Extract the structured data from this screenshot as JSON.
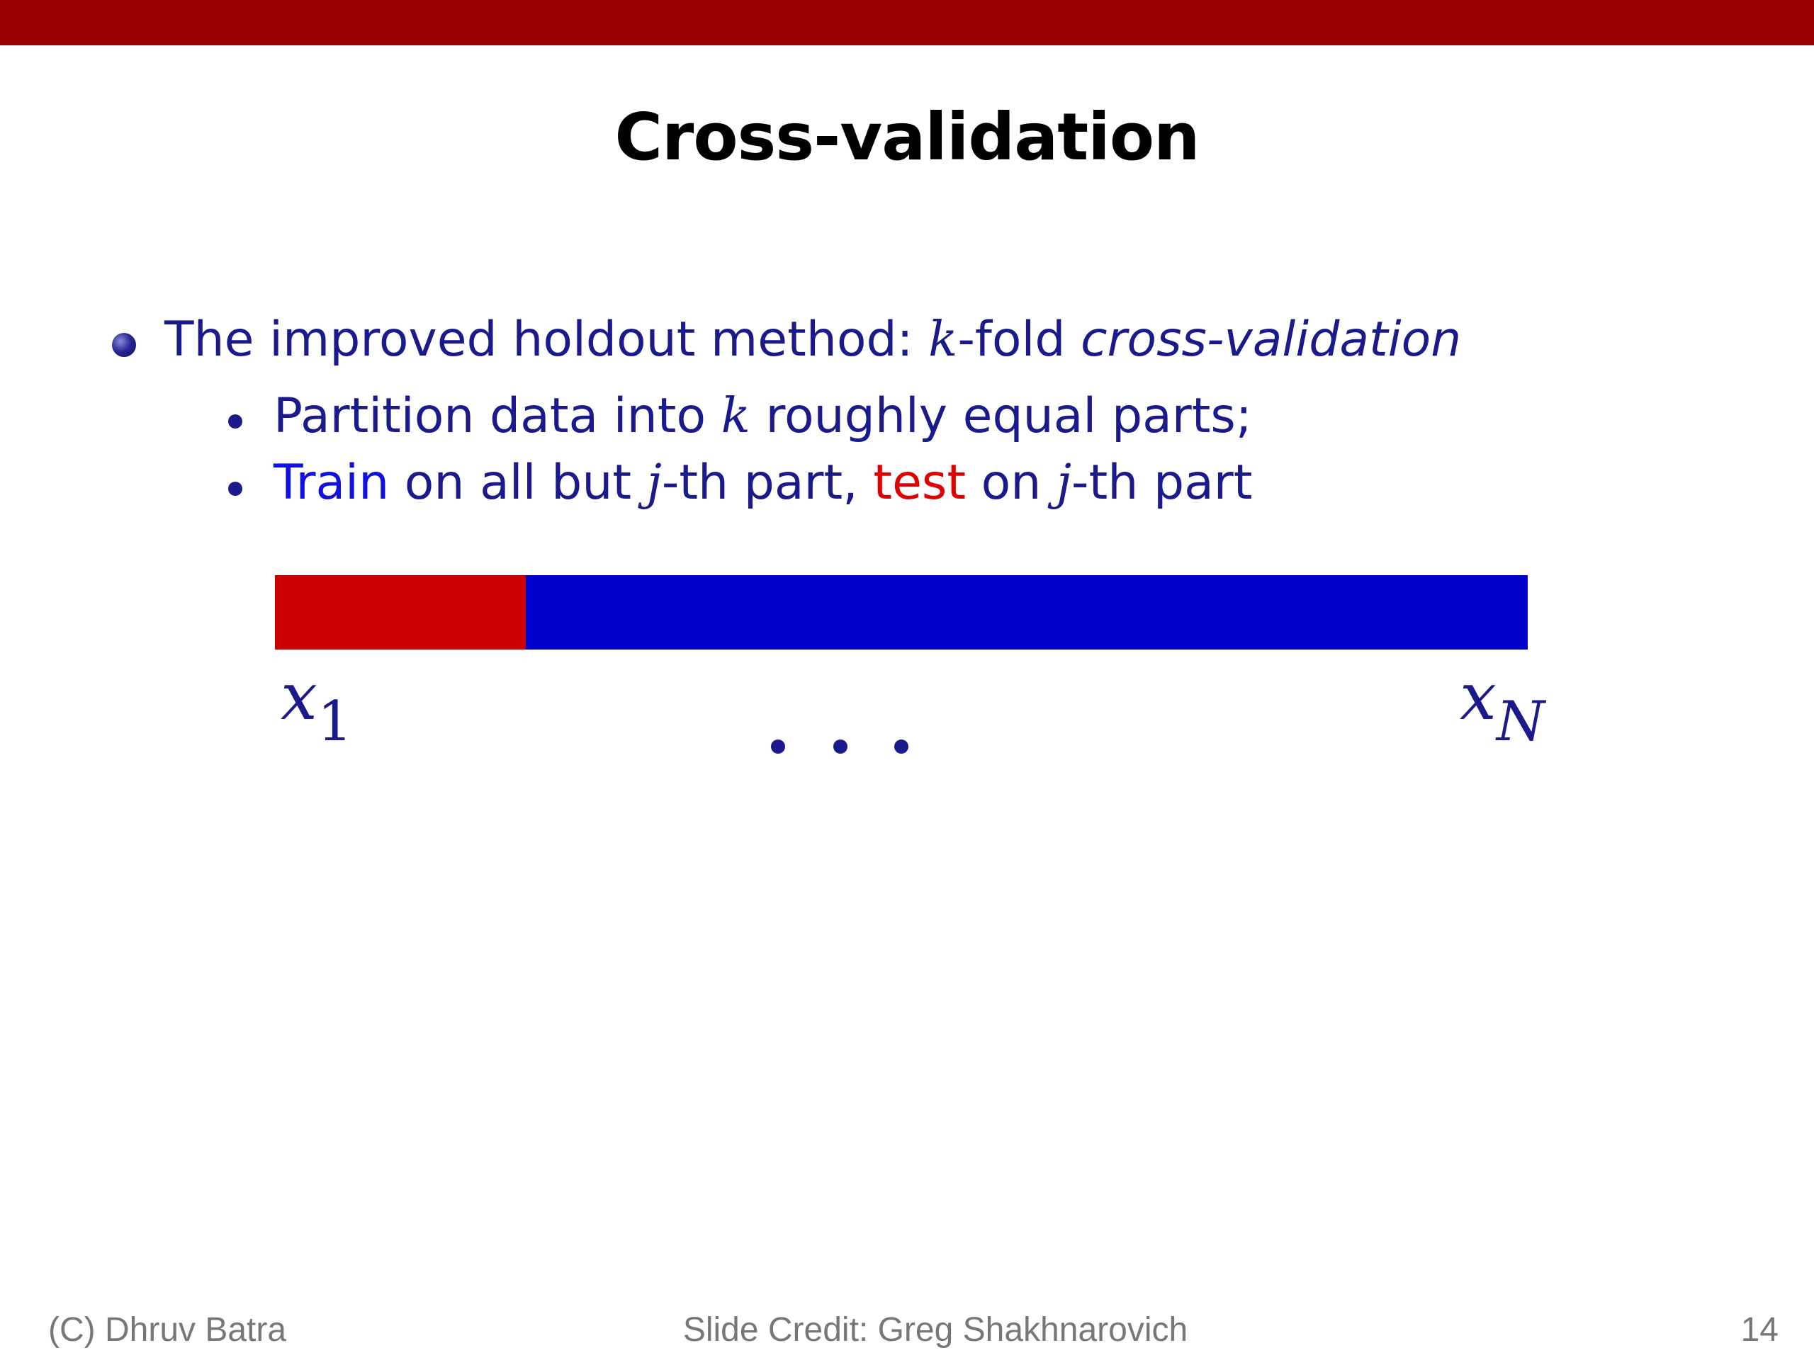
{
  "colors": {
    "header_bar": "#990000",
    "text": "#1a1a8c",
    "train": "#0000cc",
    "test": "#cc0000"
  },
  "slide": {
    "title": "Cross-validation",
    "bullet1": {
      "prefix": "The improved holdout method: ",
      "var": "k",
      "middle": "-fold ",
      "emph": "cross-validation"
    },
    "bullet2": {
      "prefix": "Partition data into ",
      "var": "k",
      "suffix": " roughly equal parts;"
    },
    "bullet3": {
      "train": "Train",
      "part1": " on all but ",
      "var1": "j",
      "part2": "-th part, ",
      "test": "test",
      "part3": " on ",
      "var2": "j",
      "part4": "-th part"
    },
    "diagram": {
      "test_fraction": 0.2,
      "label_first": "x",
      "label_first_sub": "1",
      "label_last": "x",
      "label_last_sub": "N"
    }
  },
  "footer": {
    "left": "(C) Dhruv Batra",
    "center": "Slide Credit: Greg Shakhnarovich",
    "page": "14"
  }
}
